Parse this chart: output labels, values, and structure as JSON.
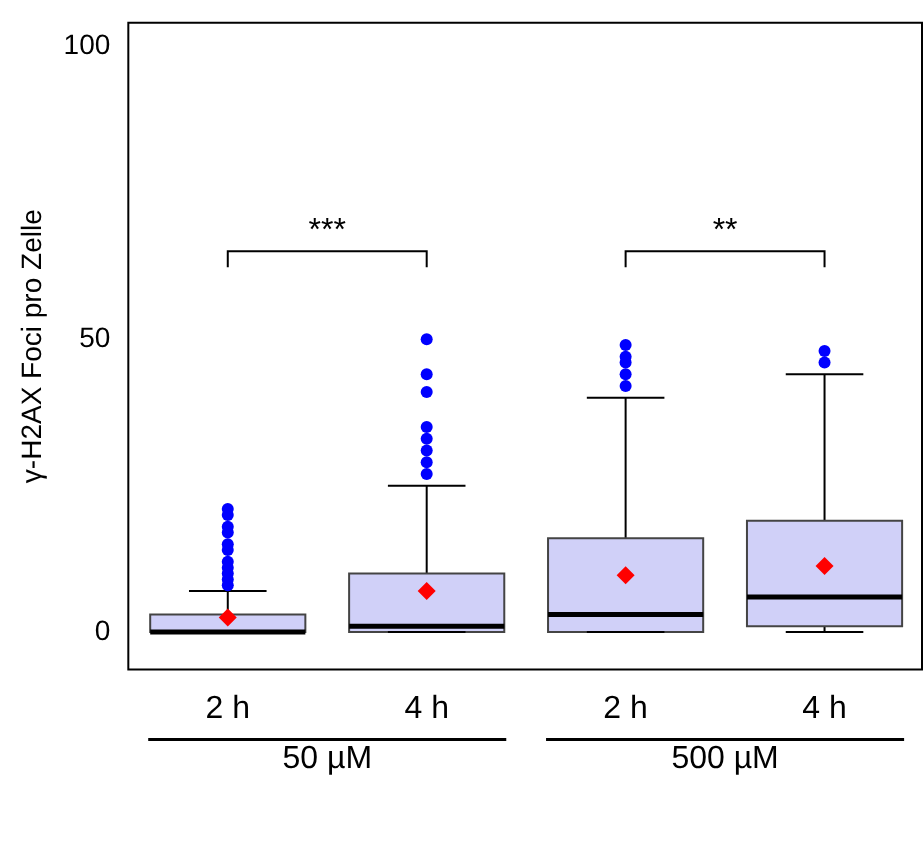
{
  "chart_data": {
    "type": "box",
    "ylabel": "γ-H2AX Foci pro Zelle",
    "categories": [
      "2 h",
      "4 h",
      "2 h",
      "4 h"
    ],
    "series": [
      {
        "type": "box",
        "color": "#d0d0f8",
        "boxes": [
          {
            "low": 0,
            "q1": 0,
            "median": 0,
            "q3": 3,
            "high": 7,
            "mean": 2.5,
            "outliers": [
              8,
              9,
              10,
              11,
              12,
              14,
              15,
              17,
              18,
              20,
              21
            ]
          },
          {
            "low": 0,
            "q1": 0,
            "median": 1,
            "q3": 10,
            "high": 25,
            "mean": 7,
            "outliers": [
              27,
              29,
              31,
              33,
              35,
              41,
              44,
              50
            ]
          },
          {
            "low": 0,
            "q1": 0,
            "median": 3,
            "q3": 16,
            "high": 40,
            "mean": 9.7,
            "outliers": [
              42,
              44,
              46,
              47,
              49
            ]
          },
          {
            "low": 0,
            "q1": 1,
            "median": 6,
            "q3": 19,
            "high": 44,
            "mean": 11.3,
            "outliers": [
              46,
              48
            ]
          }
        ]
      }
    ],
    "ylim": [
      -6.4,
      104
    ],
    "yticks": [
      0,
      50,
      100
    ],
    "grid": false,
    "legend": false,
    "annotations": [
      "***",
      "**",
      "50 µM",
      "500 µM"
    ]
  }
}
